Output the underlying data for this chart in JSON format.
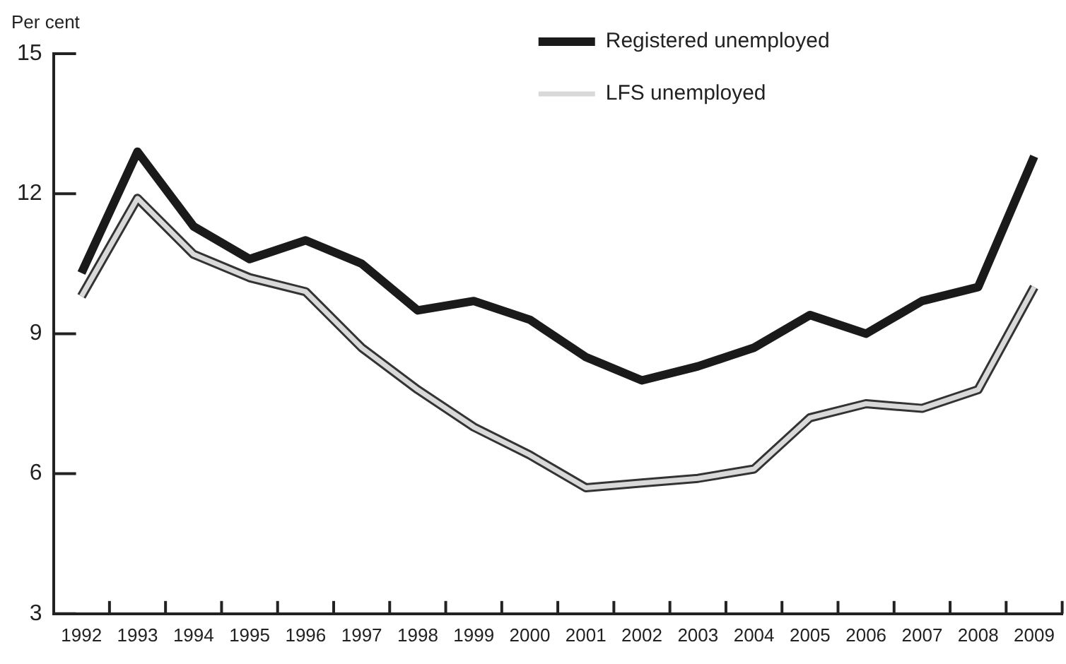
{
  "chart_data": {
    "type": "line",
    "ylabel": "Per cent",
    "categories": [
      "1992",
      "1993",
      "1994",
      "1995",
      "1996",
      "1997",
      "1998",
      "1999",
      "2000",
      "2001",
      "2002",
      "2003",
      "2004",
      "2005",
      "2006",
      "2007",
      "2008",
      "2009"
    ],
    "series": [
      {
        "name": "Registered unemployed",
        "color": "#1a1a1a",
        "values": [
          10.3,
          12.9,
          11.3,
          10.6,
          11.0,
          10.5,
          9.5,
          9.7,
          9.3,
          8.5,
          8.0,
          8.3,
          8.7,
          9.4,
          9.0,
          9.7,
          10.0,
          12.8
        ]
      },
      {
        "name": "LFS unemployed",
        "color": "#d9d9d9",
        "values": [
          9.8,
          11.9,
          10.7,
          10.2,
          9.9,
          8.7,
          7.8,
          7.0,
          6.4,
          5.7,
          5.8,
          5.9,
          6.1,
          7.2,
          7.5,
          7.4,
          7.8,
          10.0
        ]
      }
    ],
    "ylim": [
      3,
      15
    ],
    "yticks": [
      3,
      6,
      9,
      12,
      15
    ],
    "grid": false,
    "legend": "top right",
    "marker": "none",
    "line_style": "solid"
  }
}
